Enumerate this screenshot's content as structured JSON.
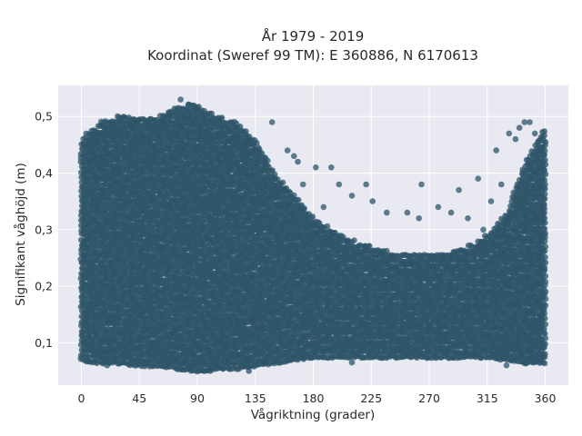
{
  "chart_data": {
    "type": "scatter",
    "title_line1": "År 1979 - 2019",
    "title_line2": "Koordinat (Sweref 99 TM): E 360886, N 6170613",
    "xlabel": "Vågriktning (grader)",
    "ylabel": "Signifikant våghöjd (m)",
    "xlim": [
      -18,
      378
    ],
    "ylim": [
      0.025,
      0.555
    ],
    "xticks": [
      0,
      45,
      90,
      135,
      180,
      225,
      270,
      315,
      360
    ],
    "xtick_labels": [
      "0",
      "45",
      "90",
      "135",
      "180",
      "225",
      "270",
      "315",
      "360"
    ],
    "yticks": [
      0.1,
      0.2,
      0.3,
      0.4,
      0.5
    ],
    "ytick_labels": [
      "0,1",
      "0,2",
      "0,3",
      "0,4",
      "0,5"
    ],
    "grid": true,
    "background": "#e9e9f2",
    "marker_color": "#2e5468",
    "envelope": {
      "x": [
        0,
        15,
        30,
        45,
        60,
        75,
        90,
        105,
        120,
        135,
        150,
        165,
        180,
        195,
        210,
        225,
        240,
        255,
        270,
        285,
        300,
        315,
        330,
        345,
        360
      ],
      "ymin": [
        0.07,
        0.065,
        0.065,
        0.06,
        0.06,
        0.055,
        0.05,
        0.055,
        0.055,
        0.06,
        0.065,
        0.07,
        0.075,
        0.075,
        0.075,
        0.075,
        0.075,
        0.075,
        0.075,
        0.075,
        0.075,
        0.075,
        0.07,
        0.065,
        0.065
      ],
      "ymax": [
        0.46,
        0.49,
        0.5,
        0.5,
        0.5,
        0.52,
        0.52,
        0.5,
        0.49,
        0.46,
        0.4,
        0.36,
        0.32,
        0.3,
        0.28,
        0.27,
        0.26,
        0.26,
        0.26,
        0.26,
        0.27,
        0.29,
        0.33,
        0.42,
        0.48
      ]
    },
    "outliers": [
      {
        "x": 77,
        "y": 0.53
      },
      {
        "x": 148,
        "y": 0.49
      },
      {
        "x": 160,
        "y": 0.44
      },
      {
        "x": 165,
        "y": 0.43
      },
      {
        "x": 168,
        "y": 0.42
      },
      {
        "x": 182,
        "y": 0.41
      },
      {
        "x": 194,
        "y": 0.41
      },
      {
        "x": 172,
        "y": 0.38
      },
      {
        "x": 200,
        "y": 0.38
      },
      {
        "x": 221,
        "y": 0.38
      },
      {
        "x": 210,
        "y": 0.36
      },
      {
        "x": 226,
        "y": 0.35
      },
      {
        "x": 188,
        "y": 0.34
      },
      {
        "x": 237,
        "y": 0.33
      },
      {
        "x": 253,
        "y": 0.33
      },
      {
        "x": 262,
        "y": 0.32
      },
      {
        "x": 264,
        "y": 0.38
      },
      {
        "x": 277,
        "y": 0.34
      },
      {
        "x": 287,
        "y": 0.33
      },
      {
        "x": 293,
        "y": 0.37
      },
      {
        "x": 300,
        "y": 0.32
      },
      {
        "x": 308,
        "y": 0.39
      },
      {
        "x": 312,
        "y": 0.3
      },
      {
        "x": 318,
        "y": 0.35
      },
      {
        "x": 322,
        "y": 0.44
      },
      {
        "x": 326,
        "y": 0.38
      },
      {
        "x": 332,
        "y": 0.47
      },
      {
        "x": 337,
        "y": 0.46
      },
      {
        "x": 340,
        "y": 0.48
      },
      {
        "x": 344,
        "y": 0.49
      },
      {
        "x": 348,
        "y": 0.49
      },
      {
        "x": 352,
        "y": 0.47
      },
      {
        "x": 356,
        "y": 0.44
      },
      {
        "x": 20,
        "y": 0.06
      },
      {
        "x": 100,
        "y": 0.05
      },
      {
        "x": 130,
        "y": 0.05
      },
      {
        "x": 210,
        "y": 0.065
      },
      {
        "x": 330,
        "y": 0.06
      }
    ]
  }
}
